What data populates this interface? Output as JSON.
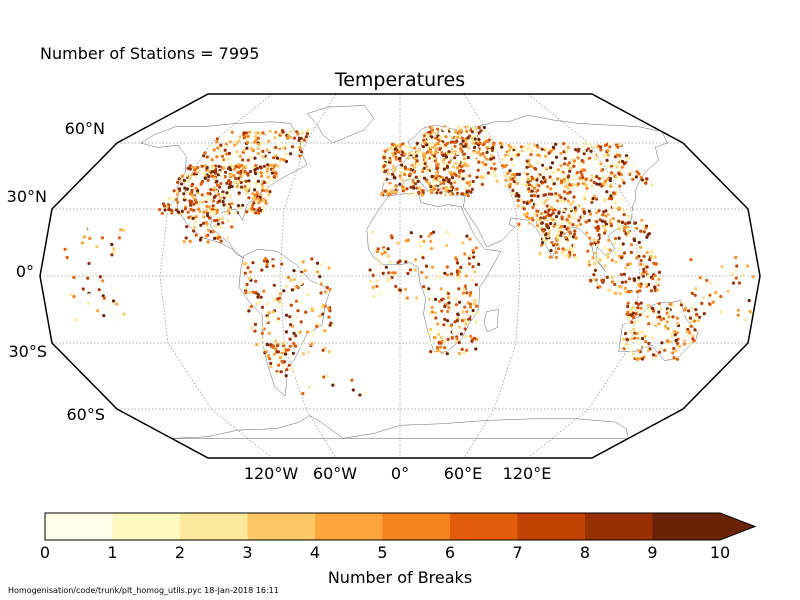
{
  "header": {
    "stations_text": "Number of Stations = 7995",
    "title": "Temperatures"
  },
  "map": {
    "projection": "Robinson",
    "lat_labels": [
      "60°N",
      "30°N",
      "0°",
      "30°S",
      "60°S"
    ],
    "lon_labels": [
      "120°W",
      "60°W",
      "0°",
      "60°E",
      "120°E"
    ],
    "gridlines": true,
    "coastline_color": "#000000",
    "grid_color": "#999999"
  },
  "colorbar": {
    "label": "Number of Breaks",
    "ticks": [
      "0",
      "1",
      "2",
      "3",
      "4",
      "5",
      "6",
      "7",
      "8",
      "9",
      "10"
    ],
    "colors": [
      "#fffee6",
      "#fff8c0",
      "#fee89c",
      "#fec964",
      "#fea53c",
      "#f5841f",
      "#e25e0c",
      "#c34304",
      "#993004",
      "#6b2306"
    ],
    "extend": "max"
  },
  "footer": {
    "text": "Homogenisation/code/trunk/plt_homog_utils.pyc   18-Jan-2018 16:11"
  }
}
